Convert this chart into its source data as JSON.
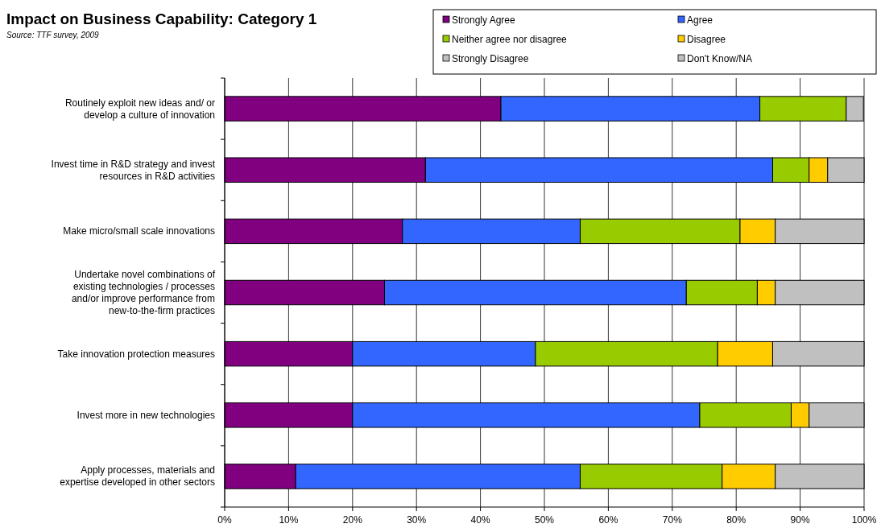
{
  "chart_data": {
    "type": "bar",
    "orientation": "horizontal",
    "stacked": true,
    "title": "Impact on Business Capability: Category 1",
    "annotations": [
      "Source: TTF survey, 2009"
    ],
    "categories": [
      "Routinely exploit new ideas and/ or develop a culture of innovation",
      "Invest time in R&D strategy and invest resources in R&D activities",
      "Make micro/small scale innovations",
      "Undertake novel combinations of existing technologies / processes and/or improve performance from new-to-the-firm practices",
      "Take innovation protection measures",
      "Invest more in new technologies",
      "Apply processes, materials and expertise developed in other sectors"
    ],
    "series": [
      {
        "name": "Strongly Agree",
        "color": "#800080",
        "values": [
          43.2,
          31.4,
          27.8,
          25,
          20,
          20,
          11.1
        ]
      },
      {
        "name": "Agree",
        "color": "#3366ff",
        "values": [
          40.5,
          54.3,
          27.8,
          47.2,
          28.6,
          54.3,
          44.5
        ]
      },
      {
        "name": "Neither agree nor disagree",
        "color": "#99cc00",
        "values": [
          13.5,
          5.7,
          25,
          11.1,
          28.5,
          14.3,
          22.2
        ]
      },
      {
        "name": "Disagree",
        "color": "#ffcc00",
        "values": [
          0,
          2.9,
          5.5,
          2.8,
          8.6,
          2.8,
          8.3
        ]
      },
      {
        "name": "Strongly Disagree",
        "color": "#c0c0c0",
        "values": [
          0,
          0,
          0,
          0,
          0,
          0,
          0
        ]
      },
      {
        "name": "Don't Know/NA",
        "color": "#c0c0c0",
        "values": [
          2.7,
          5.7,
          13.9,
          13.9,
          14.3,
          8.6,
          13.9
        ]
      }
    ],
    "xlim": [
      0,
      100
    ],
    "xticks": [
      {
        "value": 0,
        "label": "0%"
      },
      {
        "value": 10,
        "label": "10%"
      },
      {
        "value": 20,
        "label": "20%"
      },
      {
        "value": 30,
        "label": "30%"
      },
      {
        "value": 40,
        "label": "40%"
      },
      {
        "value": 50,
        "label": "50%"
      },
      {
        "value": 60,
        "label": "60%"
      },
      {
        "value": 70,
        "label": "70%"
      },
      {
        "value": 80,
        "label": "80%"
      },
      {
        "value": 90,
        "label": "90%"
      },
      {
        "value": 100,
        "label": "100%"
      }
    ],
    "grid": "x",
    "legend": "top right"
  }
}
